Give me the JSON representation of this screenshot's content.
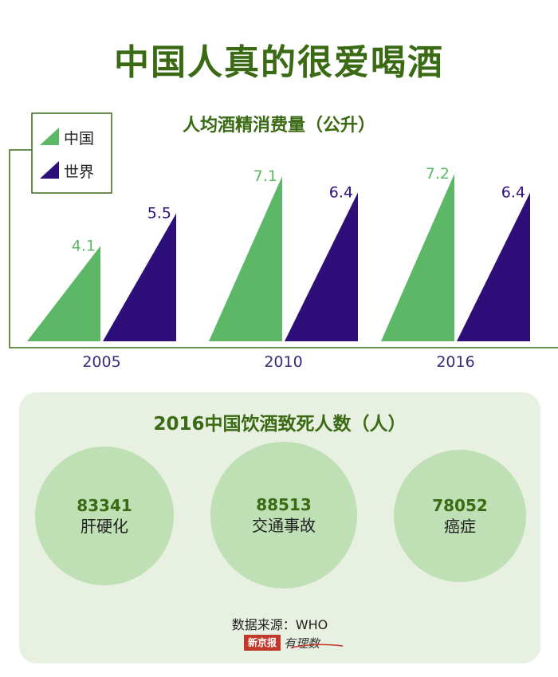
{
  "title": "中国人真的很爱喝酒",
  "chart_data": {
    "type": "bar",
    "title": "人均酒精消费量（公升）",
    "categories": [
      "2005",
      "2010",
      "2016"
    ],
    "series": [
      {
        "name": "中国",
        "values": [
          4.1,
          7.1,
          7.2
        ],
        "labels": [
          "4.1",
          "7.1",
          "7.2"
        ],
        "color": "#5cb866"
      },
      {
        "name": "世界",
        "values": [
          5.5,
          6.4,
          6.4
        ],
        "labels": [
          "5.5",
          "6.4",
          "6.4"
        ],
        "color": "#2e0f7a"
      }
    ],
    "ylim": [
      0,
      8
    ],
    "legend": "top-left",
    "grid": false
  },
  "deaths": {
    "title": "2016中国饮酒致死人数（人）",
    "items": [
      {
        "value": "83341",
        "label": "肝硬化"
      },
      {
        "value": "88513",
        "label": "交通事故"
      },
      {
        "value": "78052",
        "label": "癌症"
      }
    ]
  },
  "source": "数据来源：WHO",
  "logo": {
    "box": "新京报",
    "text": "有理数"
  },
  "colors": {
    "title_green": "#3a6a14",
    "china": "#5cb866",
    "world": "#2e0f7a",
    "panel": "#e8f0e2",
    "circle": "#bfe0b4"
  }
}
